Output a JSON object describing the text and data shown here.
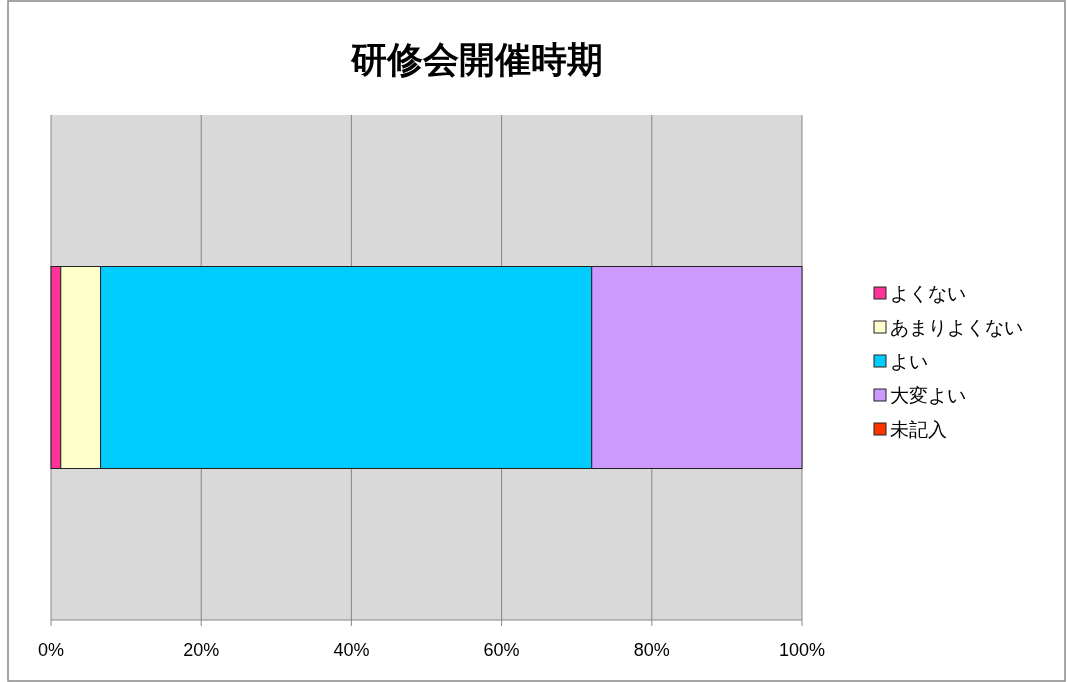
{
  "chart_data": {
    "type": "bar",
    "orientation": "horizontal",
    "stacked": true,
    "title": "研修会開催時期",
    "categories": [
      null
    ],
    "series": [
      {
        "name": "よくない",
        "color": "#ff3399",
        "values": [
          1.3
        ]
      },
      {
        "name": "あまりよくない",
        "color": "#ffffcc",
        "values": [
          5.3
        ]
      },
      {
        "name": "よい",
        "color": "#00ccff",
        "values": [
          65.4
        ]
      },
      {
        "name": "大変よい",
        "color": "#cc99ff",
        "values": [
          28.0
        ]
      },
      {
        "name": "未記入",
        "color": "#ff3300",
        "values": [
          0
        ]
      }
    ],
    "xlim": [
      0,
      100
    ],
    "xticks": [
      {
        "value": 0,
        "label": "0%"
      },
      {
        "value": 20,
        "label": "20%"
      },
      {
        "value": 40,
        "label": "40%"
      },
      {
        "value": 60,
        "label": "60%"
      },
      {
        "value": 80,
        "label": "80%"
      },
      {
        "value": 100,
        "label": "100%"
      }
    ],
    "grid": "x",
    "legend": "right"
  }
}
